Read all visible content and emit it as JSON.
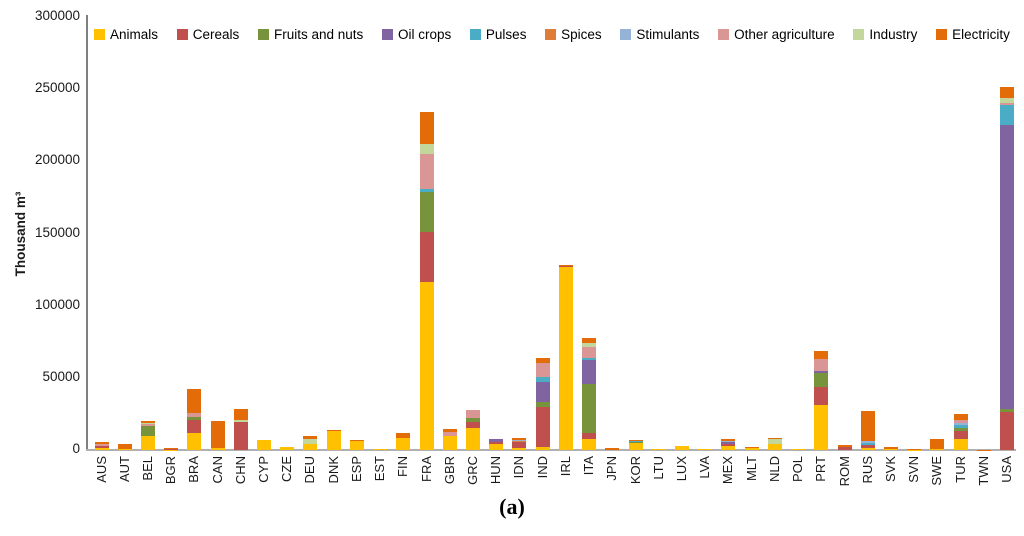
{
  "figure": {
    "caption": "(a)"
  },
  "chart_data": {
    "type": "bar",
    "stacked": true,
    "title": "",
    "xlabel": "",
    "ylabel": "Thousand m³",
    "ylim": [
      0,
      300000
    ],
    "ytick_step": 50000,
    "grid": false,
    "legend_position": "top",
    "categories": [
      "AUS",
      "AUT",
      "BEL",
      "BGR",
      "BRA",
      "CAN",
      "CHN",
      "CYP",
      "CZE",
      "DEU",
      "DNK",
      "ESP",
      "EST",
      "FIN",
      "FRA",
      "GBR",
      "GRC",
      "HUN",
      "IDN",
      "IND",
      "IRL",
      "ITA",
      "JPN",
      "KOR",
      "LTU",
      "LUX",
      "LVA",
      "MEX",
      "MLT",
      "NLD",
      "POL",
      "PRT",
      "ROM",
      "RUS",
      "SVK",
      "SVN",
      "SWE",
      "TUR",
      "TWN",
      "USA"
    ],
    "series": [
      {
        "name": "Animals",
        "color": "#FFC000",
        "values": [
          1500,
          500,
          10000,
          300,
          12000,
          1500,
          0,
          6700,
          2000,
          4500,
          13400,
          6100,
          400,
          8500,
          116500,
          9700,
          15000,
          4300,
          1600,
          2300,
          126800,
          7400,
          0,
          5100,
          400,
          2600,
          400,
          2800,
          1200,
          4400,
          600,
          31200,
          0,
          1100,
          900,
          300,
          600,
          7600,
          0,
          0
        ]
      },
      {
        "name": "Cereals",
        "color": "#C0504D",
        "values": [
          1500,
          0,
          0,
          600,
          9000,
          0,
          19500,
          0,
          0,
          0,
          0,
          0,
          0,
          0,
          34500,
          0,
          4600,
          1400,
          3700,
          27500,
          700,
          4600,
          0,
          0,
          0,
          0,
          0,
          1100,
          0,
          0,
          0,
          12700,
          2100,
          2600,
          0,
          0,
          0,
          5300,
          0,
          26500
        ]
      },
      {
        "name": "Fruits and nuts",
        "color": "#77933C",
        "values": [
          0,
          0,
          6500,
          0,
          2000,
          0,
          0,
          0,
          0,
          0,
          0,
          0,
          0,
          0,
          27500,
          0,
          2600,
          0,
          0,
          3500,
          0,
          34000,
          0,
          800,
          0,
          0,
          0,
          0,
          0,
          0,
          0,
          9200,
          0,
          0,
          0,
          0,
          0,
          2300,
          0,
          1600
        ]
      },
      {
        "name": "Oil crops",
        "color": "#8064A2",
        "values": [
          0,
          0,
          0,
          0,
          0,
          0,
          0,
          0,
          0,
          0,
          0,
          0,
          0,
          0,
          0,
          0,
          0,
          2100,
          0,
          14000,
          0,
          16300,
          0,
          0,
          0,
          0,
          0,
          1400,
          0,
          0,
          0,
          1900,
          0,
          0,
          0,
          0,
          0,
          0,
          0,
          197000
        ]
      },
      {
        "name": "Pulses",
        "color": "#4BACC6",
        "values": [
          0,
          0,
          0,
          0,
          0,
          0,
          0,
          0,
          0,
          0,
          0,
          0,
          0,
          0,
          2500,
          0,
          0,
          0,
          600,
          3500,
          0,
          1200,
          0,
          500,
          0,
          0,
          0,
          0,
          0,
          0,
          0,
          0,
          0,
          1500,
          0,
          0,
          0,
          2100,
          0,
          13900
        ]
      },
      {
        "name": "Spices",
        "color": "#E07C39",
        "values": [
          0,
          0,
          0,
          0,
          0,
          0,
          0,
          0,
          0,
          0,
          0,
          0,
          0,
          0,
          0,
          0,
          0,
          0,
          500,
          0,
          0,
          0,
          0,
          0,
          0,
          0,
          0,
          0,
          0,
          0,
          0,
          0,
          0,
          0,
          0,
          0,
          0,
          0,
          0,
          0
        ]
      },
      {
        "name": "Stimulants",
        "color": "#95B3D7",
        "values": [
          0,
          0,
          0,
          0,
          0,
          0,
          0,
          0,
          0,
          0,
          0,
          0,
          0,
          0,
          0,
          0,
          0,
          0,
          700,
          0,
          0,
          0,
          0,
          0,
          0,
          0,
          0,
          800,
          0,
          0,
          0,
          0,
          0,
          1400,
          0,
          0,
          0,
          1300,
          0,
          0
        ]
      },
      {
        "name": "Other agriculture",
        "color": "#D99694",
        "values": [
          1200,
          0,
          1500,
          0,
          3000,
          0,
          0,
          0,
          0,
          0,
          0,
          0,
          0,
          0,
          24000,
          2600,
          5800,
          0,
          0,
          9200,
          0,
          8100,
          0,
          0,
          0,
          0,
          0,
          0,
          0,
          0,
          0,
          7900,
          0,
          0,
          0,
          0,
          0,
          2100,
          0,
          1600
        ]
      },
      {
        "name": "Industry",
        "color": "#C3D69B",
        "values": [
          0,
          0,
          1000,
          0,
          0,
          0,
          1000,
          300,
          0,
          3000,
          0,
          0,
          0,
          0,
          7000,
          0,
          0,
          0,
          0,
          0,
          0,
          2300,
          0,
          0,
          0,
          0,
          0,
          0,
          0,
          3300,
          0,
          0,
          0,
          0,
          0,
          0,
          0,
          0,
          0,
          3000
        ]
      },
      {
        "name": "Electricity",
        "color": "#E36C09",
        "values": [
          1300,
          3700,
          800,
          600,
          16000,
          18500,
          8000,
          0,
          0,
          2200,
          600,
          900,
          300,
          3000,
          22000,
          2500,
          0,
          0,
          1100,
          3500,
          700,
          3900,
          1300,
          800,
          400,
          0,
          300,
          1900,
          700,
          500,
          400,
          6000,
          1600,
          20400,
          1200,
          200,
          7200,
          4600,
          300,
          7900
        ]
      }
    ]
  }
}
